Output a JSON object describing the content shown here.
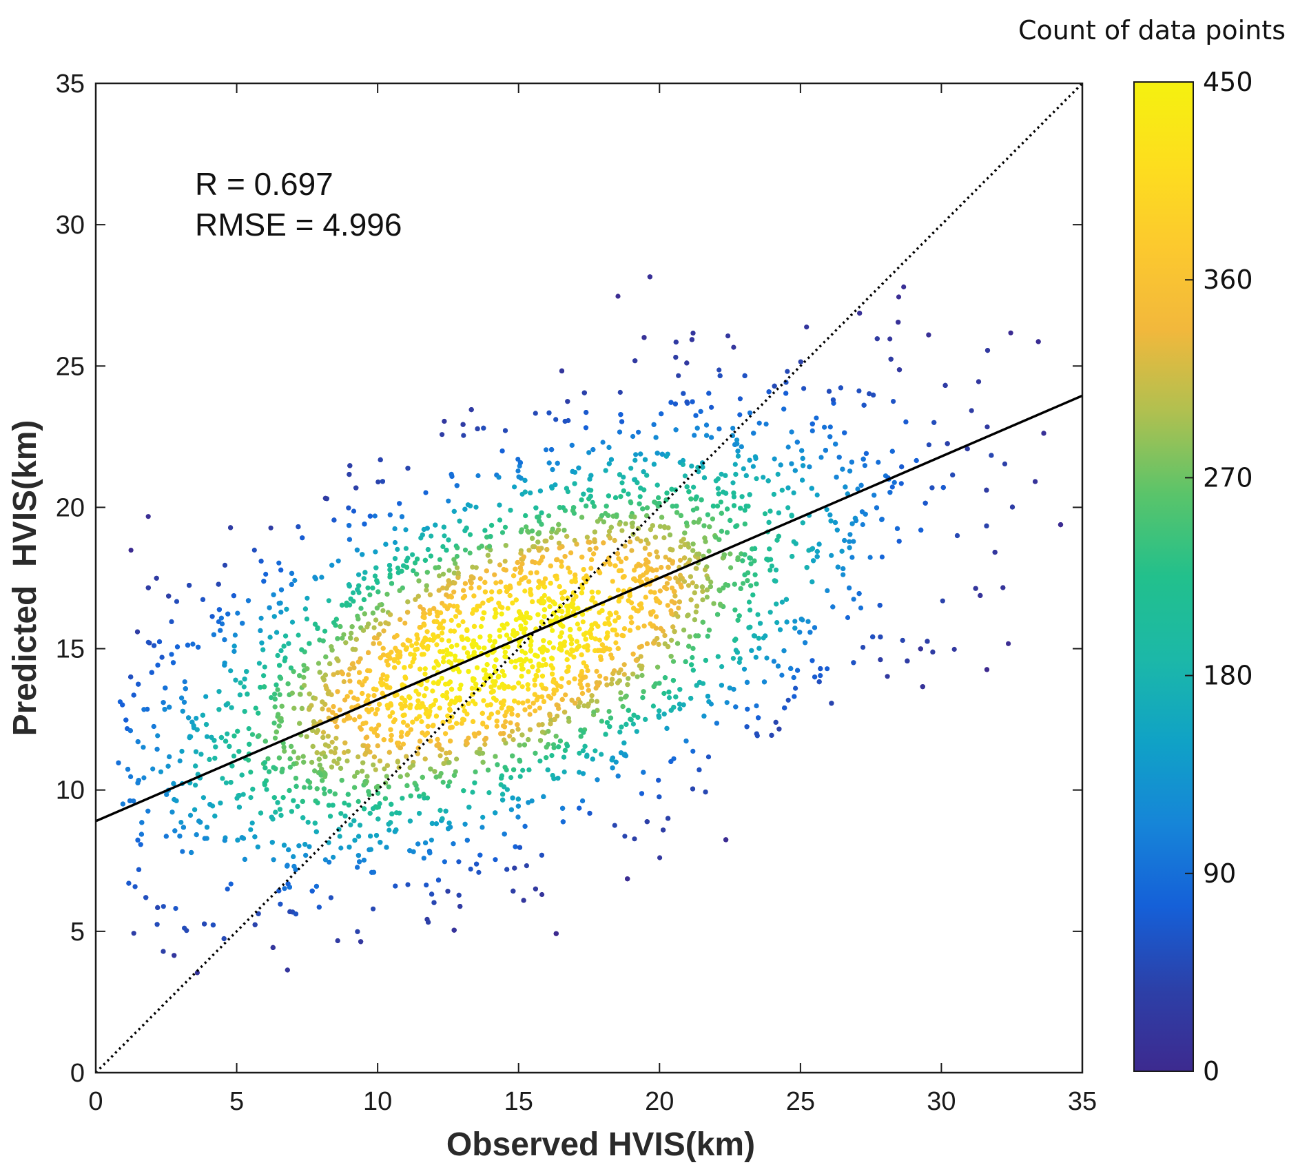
{
  "chart_data": {
    "type": "scatter",
    "title": "",
    "xlabel": "Observed HVIS(km)",
    "ylabel": "Predicted  HVIS(km)",
    "xlim": [
      0,
      35
    ],
    "ylim": [
      0,
      35
    ],
    "xticks": [
      "0",
      "5",
      "10",
      "15",
      "20",
      "25",
      "30",
      "35"
    ],
    "yticks": [
      "0",
      "5",
      "10",
      "15",
      "20",
      "25",
      "30",
      "35"
    ],
    "grid": false,
    "annotations": {
      "r_text": "R = 0.697",
      "rmse_text": "RMSE = 4.996"
    },
    "fit_line": {
      "slope": 0.43,
      "intercept": 8.9,
      "style": "solid",
      "color": "#000000"
    },
    "reference_line": {
      "slope": 1.0,
      "intercept": 0.0,
      "style": "dotted",
      "color": "#000000"
    },
    "density_cloud": {
      "center_x": 14.5,
      "center_y": 15.0,
      "sd_major": 7.2,
      "sd_minor": 3.0,
      "angle_deg": 24,
      "approx_points": 6000
    },
    "colorbar": {
      "title": "Count of data points",
      "min": 0,
      "max": 450,
      "tick_labels": [
        "0",
        "90",
        "180",
        "270",
        "360",
        "450"
      ],
      "tick_values": [
        0,
        90,
        180,
        270,
        360,
        450
      ],
      "colormap": [
        "#3d2a8f",
        "#2c40a8",
        "#1560d8",
        "#1685d8",
        "#10a2c6",
        "#1cb8a8",
        "#22c08c",
        "#5ac46a",
        "#b0c050",
        "#f2b83c",
        "#fcc92e",
        "#fdde1e",
        "#f5f10f"
      ]
    }
  }
}
